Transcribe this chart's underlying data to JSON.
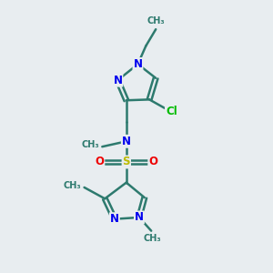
{
  "bg_color": "#e8edf0",
  "bond_color": "#2d7a6e",
  "N_color": "#0000ee",
  "O_color": "#ee0000",
  "S_color": "#bbbb00",
  "Cl_color": "#00bb00",
  "line_width": 1.8,
  "font_size": 8.5,
  "fig_w": 3.0,
  "fig_h": 3.0,
  "dpi": 100,
  "xlim": [
    0,
    10
  ],
  "ylim": [
    0,
    10
  ]
}
